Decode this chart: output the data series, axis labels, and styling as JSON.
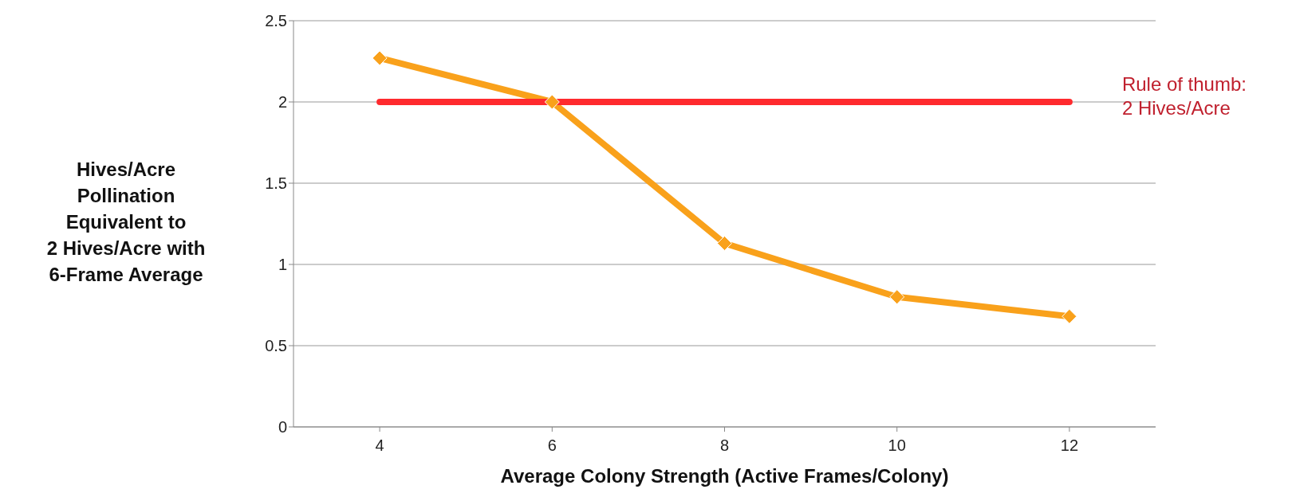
{
  "chart_data": {
    "type": "line",
    "xlabel": "Average Colony Strength (Active Frames/Colony)",
    "ylabel": "Hives/Acre\nPollination\nEquivalent to\n2 Hives/Acre with\n6-Frame Average",
    "categories": [
      "4",
      "6",
      "8",
      "10",
      "12"
    ],
    "series": [
      {
        "name": null,
        "color": "#f9a11b",
        "values": [
          2.27,
          2.0,
          1.13,
          0.8,
          0.68
        ],
        "marker": "diamond"
      },
      {
        "name": "Rule of thumb:\n2 Hives/Acre",
        "color": "#ff2a2e",
        "values": [
          2,
          2,
          2,
          2,
          2
        ],
        "marker": "none"
      }
    ],
    "ylim": [
      0,
      2.5
    ],
    "yticks": [
      0,
      0.5,
      1,
      1.5,
      2,
      2.5
    ],
    "grid": "y",
    "legend": false
  }
}
